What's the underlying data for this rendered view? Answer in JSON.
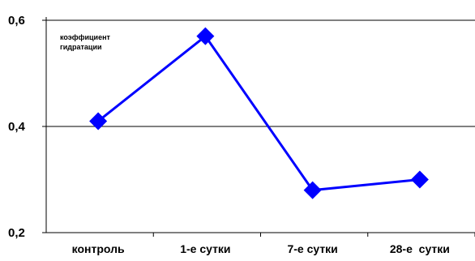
{
  "chart_data": {
    "type": "line",
    "title": "",
    "xlabel": "",
    "ylabel": "",
    "annotation": [
      "коэффициент",
      "гидратации"
    ],
    "categories": [
      "контроль",
      "1-е сутки",
      "7-е сутки",
      "28-е  сутки"
    ],
    "series": [
      {
        "values": [
          0.41,
          0.57,
          0.28,
          0.3
        ],
        "color": "#0000ff"
      }
    ],
    "ylim": [
      0.2,
      0.6
    ],
    "yticks": [
      "0,2",
      "0,4",
      "0,6"
    ],
    "ytick_values": [
      0.2,
      0.4,
      0.6
    ],
    "grid": "horizontal",
    "legend": "none"
  }
}
